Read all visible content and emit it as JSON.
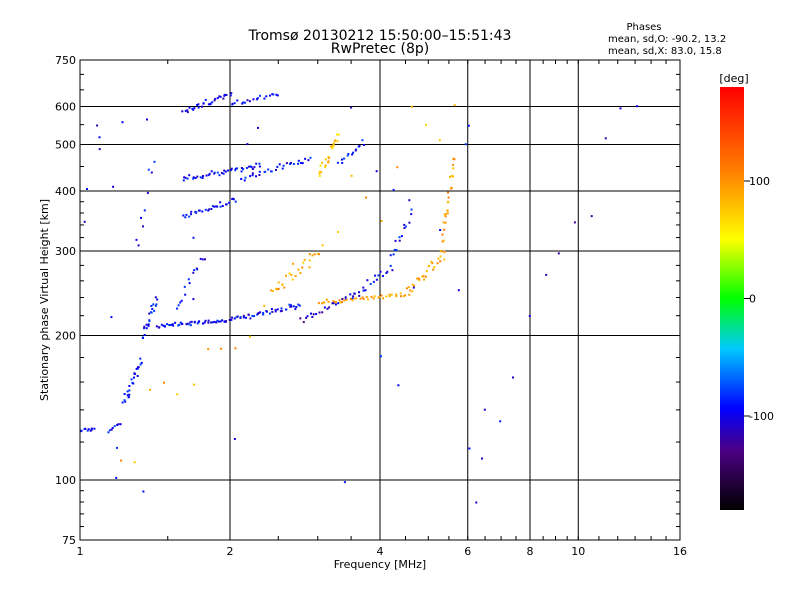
{
  "chart_data": {
    "type": "scatter",
    "title": "Tromsø 20130212 15:50:00–15:51:43",
    "subtitle": "RwPretec (8p)",
    "xlabel": "Frequency [MHz]",
    "ylabel": "Stationary phase Virtual Height [km]",
    "x_scale": "log",
    "y_scale": "log",
    "xlim": [
      1,
      16
    ],
    "ylim": [
      75,
      750
    ],
    "x_ticks": [
      1,
      2,
      4,
      6,
      8,
      10,
      16
    ],
    "y_ticks": [
      75,
      100,
      200,
      300,
      400,
      500,
      600,
      750
    ],
    "x_gridlines": [
      2,
      4,
      6,
      8,
      10
    ],
    "y_gridlines": [
      100,
      200,
      300,
      400,
      500,
      600
    ],
    "grid": true,
    "stats": {
      "header": "Phases",
      "line1": "mean, sd,O: -90.2, 13.2",
      "line2": "mean, sd,X:  83.0, 15.8"
    },
    "colorbar": {
      "label": "[deg]",
      "ticks": [
        100,
        0,
        -100
      ],
      "range": [
        -180,
        180
      ]
    },
    "point_sets": [
      {
        "x": [
          1.0,
          1.06
        ],
        "y": [
          128,
          128
        ],
        "phase": -95,
        "n": 10
      },
      {
        "x": [
          1.13,
          1.2
        ],
        "y": [
          126,
          132
        ],
        "phase": -95,
        "n": 8
      },
      {
        "x": [
          1.22,
          1.32
        ],
        "y": [
          145,
          180
        ],
        "phase": -95,
        "n": 26
      },
      {
        "x": [
          1.33,
          1.42
        ],
        "y": [
          200,
          240
        ],
        "phase": -95,
        "n": 22
      },
      {
        "x": [
          1.42,
          1.95
        ],
        "y": [
          210,
          216
        ],
        "phase": -95,
        "n": 45
      },
      {
        "x": [
          1.95,
          2.75
        ],
        "y": [
          216,
          232
        ],
        "phase": -95,
        "n": 45
      },
      {
        "x": [
          1.55,
          1.75
        ],
        "y": [
          230,
          290
        ],
        "phase": -95,
        "n": 14
      },
      {
        "x": [
          2.75,
          3.5
        ],
        "y": [
          215,
          245
        ],
        "phase": -110,
        "n": 22
      },
      {
        "x": [
          3.5,
          4.2
        ],
        "y": [
          240,
          280
        ],
        "phase": -95,
        "n": 20
      },
      {
        "x": [
          4.2,
          4.6
        ],
        "y": [
          290,
          370
        ],
        "phase": -95,
        "n": 14
      },
      {
        "x": [
          2.4,
          3.0
        ],
        "y": [
          245,
          300
        ],
        "phase": 90,
        "n": 24
      },
      {
        "x": [
          3.0,
          4.5
        ],
        "y": [
          235,
          245
        ],
        "phase": 95,
        "n": 40
      },
      {
        "x": [
          4.5,
          5.4
        ],
        "y": [
          245,
          300
        ],
        "phase": 95,
        "n": 28
      },
      {
        "x": [
          5.3,
          5.6
        ],
        "y": [
          300,
          470
        ],
        "phase": 95,
        "n": 28
      },
      {
        "x": [
          1.6,
          2.05
        ],
        "y": [
          355,
          385
        ],
        "phase": -95,
        "n": 30
      },
      {
        "x": [
          1.6,
          2.3
        ],
        "y": [
          425,
          455
        ],
        "phase": -95,
        "n": 42
      },
      {
        "x": [
          2.1,
          2.9
        ],
        "y": [
          425,
          470
        ],
        "phase": -95,
        "n": 30
      },
      {
        "x": [
          1.6,
          2.0
        ],
        "y": [
          590,
          640
        ],
        "phase": -100,
        "n": 30
      },
      {
        "x": [
          2.0,
          2.5
        ],
        "y": [
          610,
          640
        ],
        "phase": -100,
        "n": 20
      },
      {
        "x": [
          3.0,
          3.3
        ],
        "y": [
          430,
          530
        ],
        "phase": 80,
        "n": 24
      },
      {
        "x": [
          3.3,
          3.7
        ],
        "y": [
          460,
          510
        ],
        "phase": -95,
        "n": 14
      },
      {
        "x": [
          1.3,
          1.4
        ],
        "y": [
          320,
          480
        ],
        "phase": -95,
        "n": 8
      },
      {
        "x": [
          1.0,
          6.5
        ],
        "y": [
          90,
          600
        ],
        "phase": -100,
        "n": 34
      },
      {
        "x": [
          1.2,
          5.6
        ],
        "y": [
          110,
          610
        ],
        "phase": 90,
        "n": 24
      },
      {
        "x": [
          6.0,
          13.0
        ],
        "y": [
          95,
          600
        ],
        "phase": -105,
        "n": 12
      }
    ]
  }
}
